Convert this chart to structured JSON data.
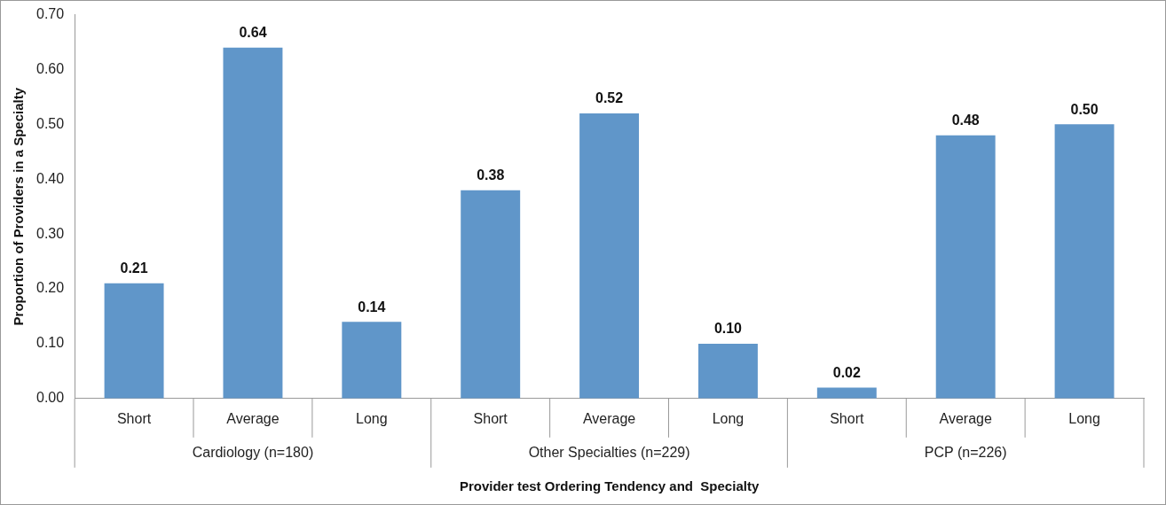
{
  "chart_data": {
    "type": "bar",
    "xlabel": "Provider test Ordering Tendency and  Specialty",
    "ylabel": "Proportion of Providers in a Specialty",
    "categories": [
      "Short",
      "Average",
      "Long",
      "Short",
      "Average",
      "Long",
      "Short",
      "Average",
      "Long"
    ],
    "values": [
      0.21,
      0.64,
      0.14,
      0.38,
      0.52,
      0.1,
      0.02,
      0.48,
      0.5
    ],
    "value_labels": [
      "0.21",
      "0.64",
      "0.14",
      "0.38",
      "0.52",
      "0.10",
      "0.02",
      "0.48",
      "0.50"
    ],
    "color": "#6096c9",
    "ylim": [
      0,
      0.7
    ],
    "yticks": [
      {
        "value": 0,
        "label": "0.00"
      },
      {
        "value": 0.1,
        "label": "0.10"
      },
      {
        "value": 0.2,
        "label": "0.20"
      },
      {
        "value": 0.3,
        "label": "0.30"
      },
      {
        "value": 0.4,
        "label": "0.40"
      },
      {
        "value": 0.5,
        "label": "0.50"
      },
      {
        "value": 0.6,
        "label": "0.60"
      },
      {
        "value": 0.7,
        "label": "0.70"
      }
    ],
    "annotations": [
      "Cardiology (n=180)",
      "Other Specialties (n=229)",
      "PCP (n=226)"
    ],
    "grid": false,
    "legend": false
  }
}
